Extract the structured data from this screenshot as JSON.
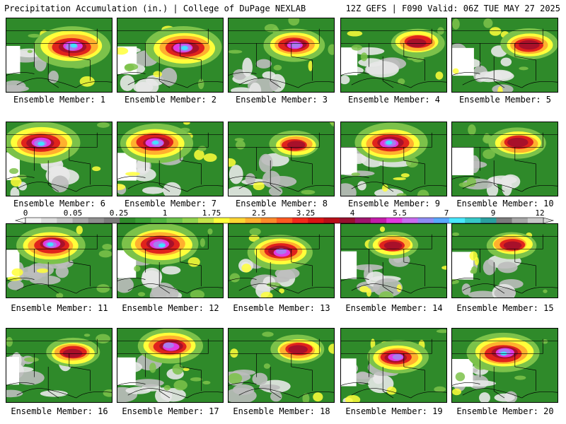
{
  "header": {
    "left": "Precipitation Accumulation (in.) | College of DuPage NEXLAB",
    "right": "12Z GEFS | F090 Valid: 06Z TUE MAY 27 2025"
  },
  "caption_prefix": "Ensemble Member: ",
  "members": [
    {
      "id": 1,
      "label": "Ensemble Member: 1"
    },
    {
      "id": 2,
      "label": "Ensemble Member: 2"
    },
    {
      "id": 3,
      "label": "Ensemble Member: 3"
    },
    {
      "id": 4,
      "label": "Ensemble Member: 4"
    },
    {
      "id": 5,
      "label": "Ensemble Member: 5"
    },
    {
      "id": 6,
      "label": "Ensemble Member: 6"
    },
    {
      "id": 7,
      "label": "Ensemble Member: 7"
    },
    {
      "id": 8,
      "label": "Ensemble Member: 8"
    },
    {
      "id": 9,
      "label": "Ensemble Member: 9"
    },
    {
      "id": 10,
      "label": "Ensemble Member: 10"
    },
    {
      "id": 11,
      "label": "Ensemble Member: 11"
    },
    {
      "id": 12,
      "label": "Ensemble Member: 12"
    },
    {
      "id": 13,
      "label": "Ensemble Member: 13"
    },
    {
      "id": 14,
      "label": "Ensemble Member: 14"
    },
    {
      "id": 15,
      "label": "Ensemble Member: 15"
    },
    {
      "id": 16,
      "label": "Ensemble Member: 16"
    },
    {
      "id": 17,
      "label": "Ensemble Member: 17"
    },
    {
      "id": 18,
      "label": "Ensemble Member: 18"
    },
    {
      "id": 19,
      "label": "Ensemble Member: 19"
    },
    {
      "id": 20,
      "label": "Ensemble Member: 20"
    }
  ],
  "colorbar": {
    "tick_labels": [
      "0",
      "0.05",
      "0.25",
      "1",
      "1.75",
      "2.5",
      "3.25",
      "4",
      "5.5",
      "7",
      "9",
      "12"
    ],
    "colors": [
      "#f2f2f2",
      "#dcdcdc",
      "#c4c4c4",
      "#a8a8a8",
      "#8f8f8f",
      "#7a7a7a",
      "#2f8a2a",
      "#3a9e34",
      "#4fb23f",
      "#6cc24a",
      "#90d24c",
      "#c6e34a",
      "#ffff3a",
      "#ffd633",
      "#ffb02e",
      "#ff8a2a",
      "#ff5a22",
      "#f52a1c",
      "#dc1414",
      "#b80f18",
      "#98102e",
      "#a0166e",
      "#c21ca8",
      "#e23ae0",
      "#c86cf0",
      "#8e8cf4",
      "#5aa8ff",
      "#48e8ff",
      "#36c8c8",
      "#2aa0a0",
      "#7c7c7c",
      "#a6a6a6",
      "#c8c8c8"
    ]
  },
  "palette": {
    "base_green": "#2f8a2a",
    "gray_1": "#e8e8e8",
    "gray_2": "#bdbdbd",
    "light_green": "#7cc24a",
    "yellow": "#ffff3a",
    "orange": "#ffb02e",
    "red": "#e0231c",
    "dark_red": "#a8102a",
    "magenta": "#e23ae0",
    "purple": "#a87cf0",
    "cyan": "#44e0ff",
    "border": "#000000"
  }
}
